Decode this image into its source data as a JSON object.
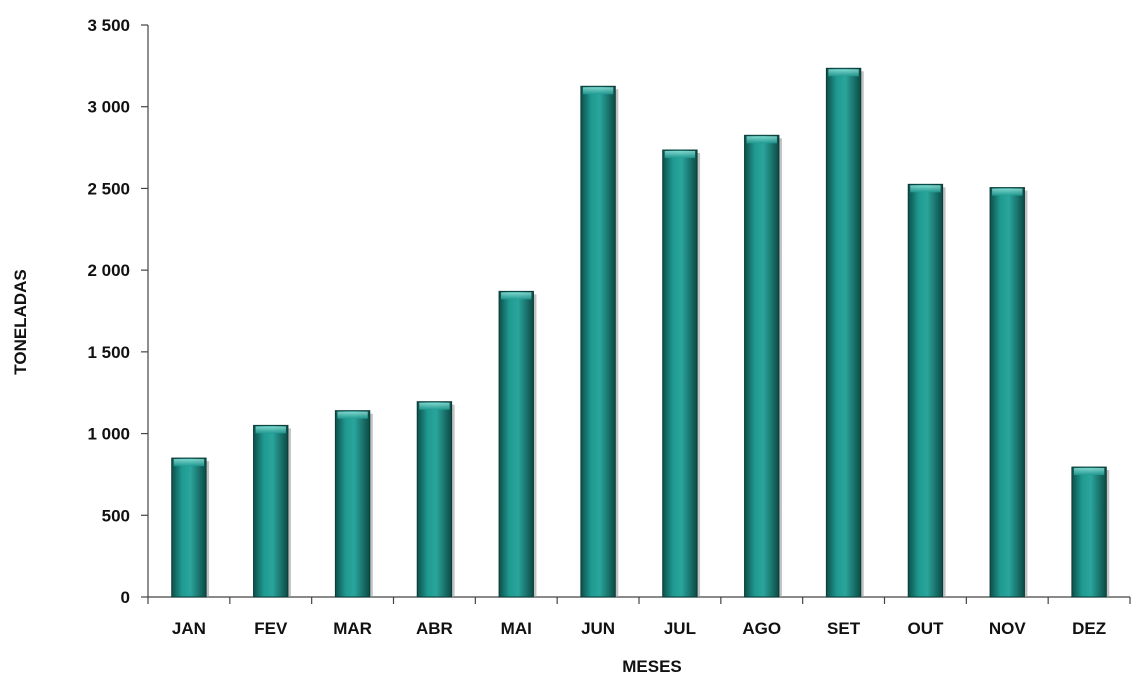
{
  "chart_data": {
    "type": "bar",
    "categories": [
      "JAN",
      "FEV",
      "MAR",
      "ABR",
      "MAI",
      "JUN",
      "JUL",
      "AGO",
      "SET",
      "OUT",
      "NOV",
      "DEZ"
    ],
    "values": [
      850,
      1050,
      1140,
      1195,
      1870,
      3125,
      2735,
      2825,
      3235,
      2525,
      2505,
      795
    ],
    "title": "",
    "xlabel": "MESES",
    "ylabel": "TONELADAS",
    "ylim": [
      0,
      3500
    ],
    "yticks": [
      0,
      500,
      1000,
      1500,
      2000,
      2500,
      3000,
      3500
    ],
    "ytick_labels": [
      "0",
      "500",
      "1 000",
      "1 500",
      "2 000",
      "2 500",
      "3 000",
      "3 500"
    ],
    "grid": false,
    "legend": "none",
    "bar_color": "#1a8a82"
  }
}
